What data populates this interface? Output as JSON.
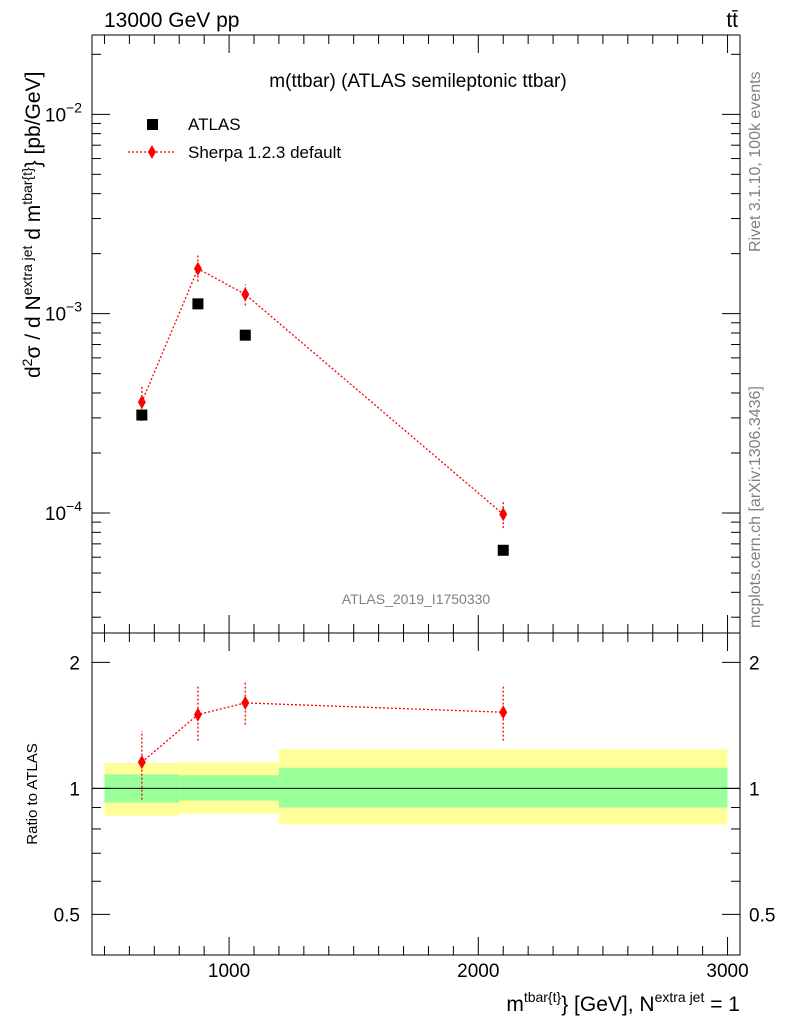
{
  "header": {
    "energy_label": "13000 GeV pp",
    "process_label": "tt̄"
  },
  "side_labels": {
    "rivet": "Rivet 3.1.10,  100k events",
    "mcplots": "mcplots.cern.ch [arXiv:1306.3436]"
  },
  "chart_data": [
    {
      "type": "scatter",
      "title": "m(ttbar) (ATLAS semileptonic ttbar)",
      "analysis_label": "ATLAS_2019_I1750330",
      "ylabel": {
        "prefix": "d",
        "sup1": "2",
        "mid": "σ /  d N",
        "sup2": "extra jet",
        "mid2": " d m",
        "sup3": "tbar{t}",
        "suffix": "} [pb/GeV]"
      },
      "yscale": "log",
      "xlim": [
        450,
        3050
      ],
      "ylim": [
        2.5e-05,
        0.025
      ],
      "yticks": [
        {
          "value": 0.01,
          "base": "10",
          "exp": "−2"
        },
        {
          "value": 0.001,
          "base": "10",
          "exp": "−3"
        },
        {
          "value": 0.0001,
          "base": "10",
          "exp": "−4"
        }
      ],
      "legend_position": "top-left",
      "series": [
        {
          "name": "ATLAS",
          "marker": "square",
          "color": "#000000",
          "x": [
            650,
            875,
            1065,
            2100
          ],
          "y": [
            0.00031,
            0.00112,
            0.00078,
            6.5e-05
          ]
        },
        {
          "name": "Sherpa 1.2.3 default",
          "marker": "diamond",
          "line": "dotted",
          "color": "#ff0000",
          "x": [
            650,
            875,
            1065,
            2100
          ],
          "y": [
            0.00036,
            0.00168,
            0.00125,
            9.85e-05
          ],
          "yerr_low": [
            0.00029,
            0.00145,
            0.0011,
            8.4e-05
          ],
          "yerr_high": [
            0.00043,
            0.00196,
            0.0014,
            0.000115
          ]
        }
      ]
    },
    {
      "type": "scatter",
      "ylabel": "Ratio to ATLAS",
      "xlabel": {
        "prefix": "m",
        "sup1": "tbar{t}",
        "mid": "} [GeV], N",
        "sup2": "extra jet",
        "suffix": " = 1"
      },
      "yscale": "log",
      "xlim": [
        450,
        3050
      ],
      "ylim": [
        0.4,
        2.35
      ],
      "yticks": [
        {
          "value": 2,
          "label": "2"
        },
        {
          "value": 1,
          "label": "1"
        },
        {
          "value": 0.5,
          "label": "0.5"
        }
      ],
      "xticks": [
        {
          "value": 1000,
          "label": "1000"
        },
        {
          "value": 2000,
          "label": "2000"
        },
        {
          "value": 3000,
          "label": "3000"
        }
      ],
      "bands": {
        "x_edges": [
          500,
          800,
          1200,
          3000
        ],
        "outer_color": "#ffff99",
        "inner_color": "#99ff99",
        "inner_low": [
          0.925,
          0.935,
          0.9
        ],
        "inner_high": [
          1.08,
          1.075,
          1.12
        ],
        "outer_low": [
          0.86,
          0.87,
          0.82
        ],
        "outer_high": [
          1.15,
          1.155,
          1.24
        ]
      },
      "series": [
        {
          "name": "Sherpa 1.2.3 default",
          "marker": "diamond",
          "line": "dotted",
          "color": "#ff0000",
          "x": [
            650,
            875,
            1065,
            2100
          ],
          "y": [
            1.155,
            1.5,
            1.6,
            1.52
          ],
          "yerr_low": [
            0.94,
            1.3,
            1.42,
            1.3
          ],
          "yerr_high": [
            1.37,
            1.76,
            1.8,
            1.77
          ]
        }
      ]
    }
  ]
}
